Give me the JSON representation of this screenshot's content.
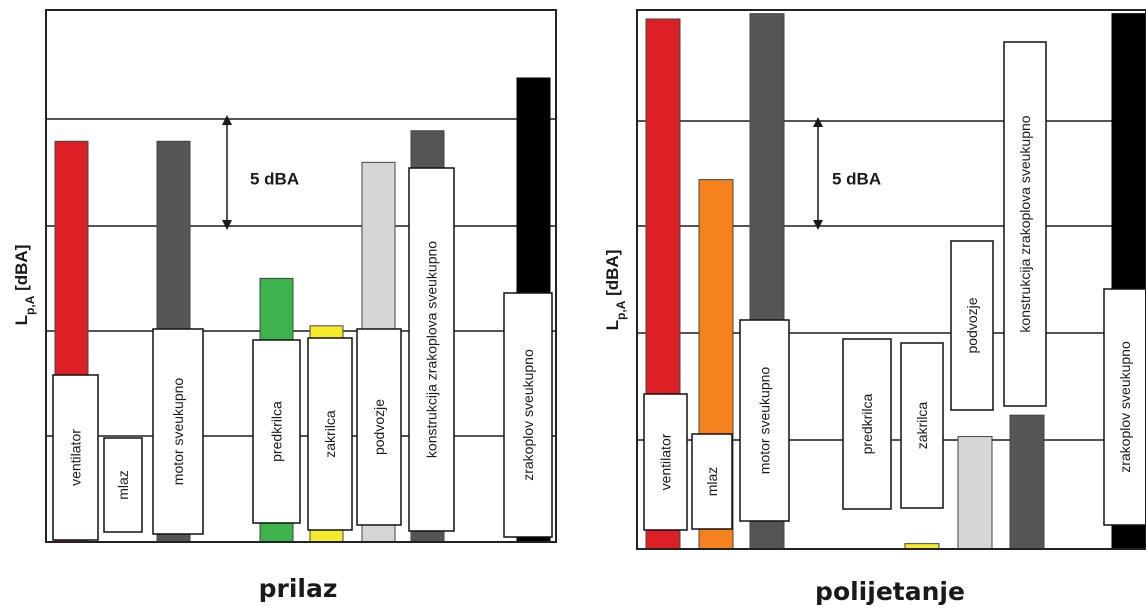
{
  "chart_data": [
    {
      "type": "bar",
      "title": "prilaz",
      "ylabel_main": "L",
      "ylabel_sub": "p,A",
      "ylabel_unit": " [dBA]",
      "annotation": "5 dBA",
      "grid": true,
      "ylim": [
        0,
        5
      ],
      "bars": [
        {
          "label": "ventilator",
          "value": 3.8,
          "color": "#dc2026"
        },
        {
          "label": "mlaz",
          "value": 0.0,
          "color": "#ffffff"
        },
        {
          "label": "motor sveukupno",
          "value": 3.8,
          "color": "#555555"
        },
        {
          "label": "predkrilca",
          "value": 2.5,
          "color": "#3cb44b"
        },
        {
          "label": "zakrilca",
          "value": 2.05,
          "color": "#f4ea2a"
        },
        {
          "label": "podvozje",
          "value": 3.6,
          "color": "#d6d6d6"
        },
        {
          "label": "konstrukcija zrakoplova sveukupno",
          "value": 3.9,
          "color": "#555555"
        },
        {
          "label": "zrakoplov sveukupno",
          "value": 4.4,
          "color": "#000000"
        }
      ]
    },
    {
      "type": "bar",
      "title": "polijetanje",
      "ylabel_main": "L",
      "ylabel_sub": "p,A",
      "ylabel_unit": " [dBA]",
      "annotation": "5 dBA",
      "grid": true,
      "ylim": [
        0,
        5
      ],
      "bars": [
        {
          "label": "ventilator",
          "value": 4.95,
          "color": "#dc2026"
        },
        {
          "label": "mlaz",
          "value": 3.45,
          "color": "#f5821f"
        },
        {
          "label": "motor sveukupno",
          "value": 5.0,
          "color": "#555555"
        },
        {
          "label": "predkrilca",
          "value": 0.0,
          "color": "#ffffff"
        },
        {
          "label": "zakrilca",
          "value": 0.05,
          "color": "#f4ea2a"
        },
        {
          "label": "podvozje",
          "value": 1.05,
          "color": "#d6d6d6"
        },
        {
          "label": "konstrukcija zrakoplova sveukupno",
          "value": 1.25,
          "color": "#555555"
        },
        {
          "label": "zrakoplov sveukupno",
          "value": 5.0,
          "color": "#000000"
        }
      ]
    }
  ]
}
